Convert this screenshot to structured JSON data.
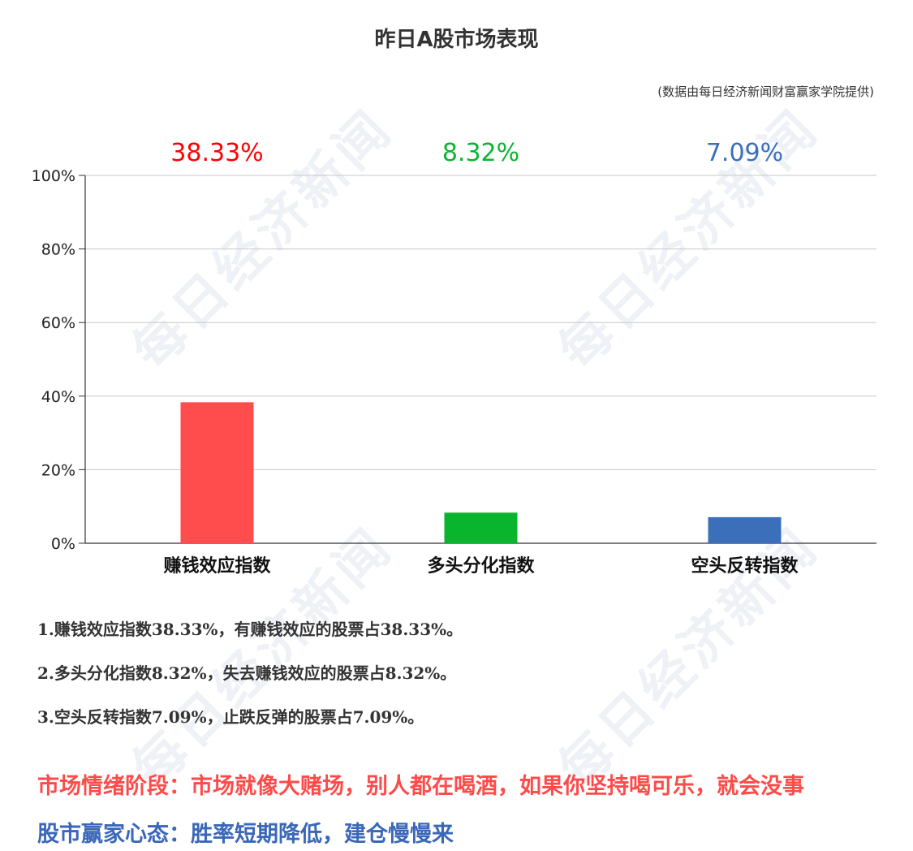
{
  "title": "昨日A股市场表现",
  "source": "(数据由每日经济新闻财富赢家学院提供)",
  "watermark": "每日经济新闻",
  "chart_data": {
    "type": "bar",
    "categories": [
      "赚钱效应指数",
      "多头分化指数",
      "空头反转指数"
    ],
    "values": [
      38.33,
      8.32,
      7.09
    ],
    "value_labels": [
      "38.33%",
      "8.32%",
      "7.09%"
    ],
    "colors": [
      "#ff4d4d",
      "#0ab52e",
      "#3b6fba"
    ],
    "label_colors": [
      "#ff0000",
      "#0ab52e",
      "#3b6fba"
    ],
    "yticks": [
      "0%",
      "20%",
      "40%",
      "60%",
      "80%",
      "100%"
    ],
    "ylim": [
      0,
      100
    ],
    "grid": true
  },
  "notes": [
    "1.赚钱效应指数38.33%，有赚钱效应的股票占38.33%。",
    "2.多头分化指数8.32%，失去赚钱效应的股票占8.32%。",
    "3.空头反转指数7.09%，止跌反弹的股票占7.09%。"
  ],
  "market_mood": "市场情绪阶段：市场就像大赌场，别人都在喝酒，如果你坚持喝可乐，就会没事",
  "winner_mindset": "股市赢家心态：胜率短期降低，建仓慢慢来"
}
